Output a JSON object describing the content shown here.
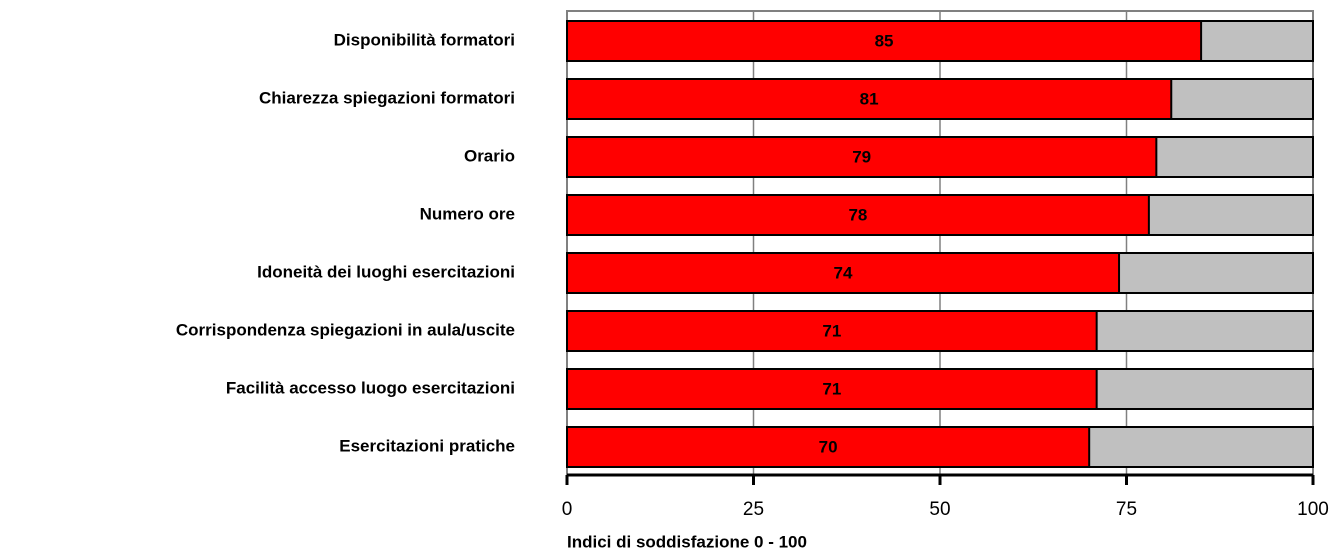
{
  "chart_data": {
    "type": "bar",
    "orientation": "horizontal",
    "categories": [
      "Disponibilità formatori",
      "Chiarezza spiegazioni formatori",
      "Orario",
      "Numero ore",
      "Idoneità dei luoghi esercitazioni",
      "Corrispondenza spiegazioni in aula/uscite",
      "Facilità accesso luogo esercitazioni",
      "Esercitazioni pratiche"
    ],
    "values": [
      85,
      81,
      79,
      78,
      74,
      71,
      71,
      70
    ],
    "color": "#ff0000",
    "track_color": "#c0c0c0",
    "xlim": [
      0,
      100
    ],
    "xticks": [
      0,
      25,
      50,
      75,
      100
    ],
    "xlabel": "Indici di soddisfazione 0 - 100",
    "grid": true
  }
}
